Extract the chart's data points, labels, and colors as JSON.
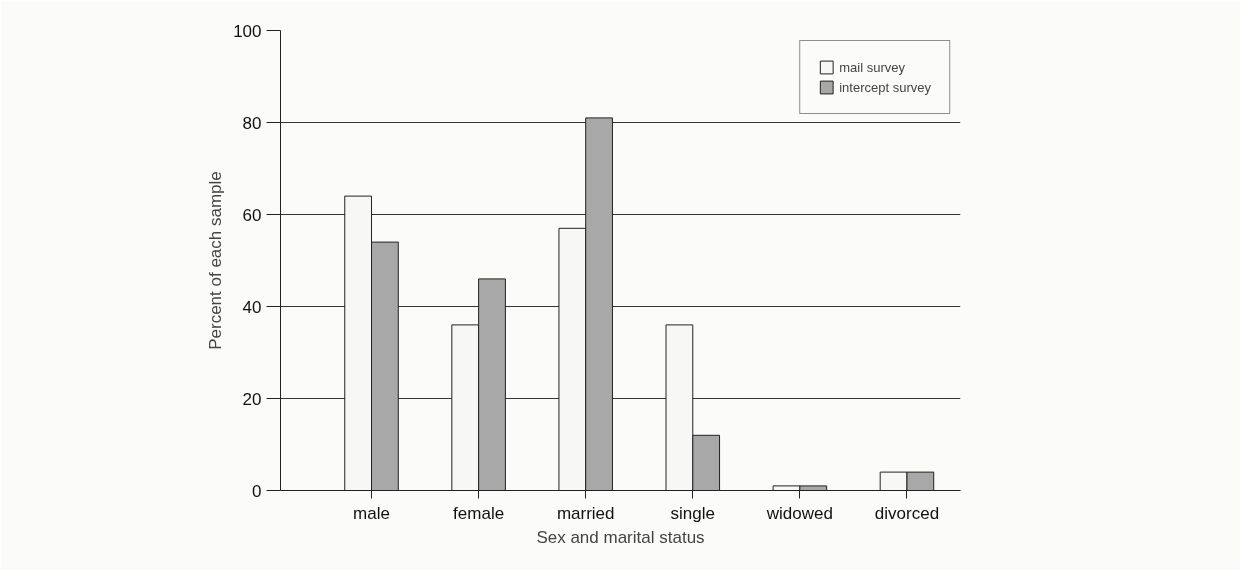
{
  "chart_data": {
    "type": "bar",
    "xlabel": "Sex and marital status",
    "ylabel": "Percent of each sample",
    "categories": [
      "male",
      "female",
      "married",
      "single",
      "widowed",
      "divorced"
    ],
    "series": [
      {
        "name": "mail survey",
        "color": "#f7f7f5",
        "values": [
          64,
          36,
          57,
          36,
          1,
          4
        ]
      },
      {
        "name": "intercept survey",
        "color": "#a8a8a8",
        "values": [
          54,
          46,
          81,
          12,
          1,
          4
        ]
      }
    ],
    "ylim": [
      0,
      100
    ],
    "yticks": [
      0,
      20,
      40,
      60,
      80,
      100
    ],
    "grid": "y",
    "legend": "top right"
  }
}
